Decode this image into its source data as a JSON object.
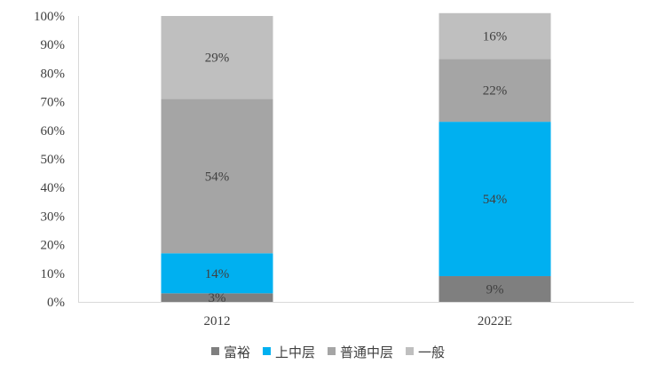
{
  "chart_data": {
    "type": "bar",
    "stacked": true,
    "categories": [
      "2012",
      "2022E"
    ],
    "series": [
      {
        "name": "富裕",
        "color": "#7f7f7f",
        "values": [
          3,
          9
        ],
        "labels": [
          "3%",
          "9%"
        ]
      },
      {
        "name": "上中层",
        "color": "#00b0f0",
        "values": [
          14,
          54
        ],
        "labels": [
          "14%",
          "54%"
        ]
      },
      {
        "name": "普通中层",
        "color": "#a5a5a5",
        "values": [
          54,
          22
        ],
        "labels": [
          "54%",
          "22%"
        ]
      },
      {
        "name": "一般",
        "color": "#bfbfbf",
        "values": [
          29,
          16
        ],
        "labels": [
          "29%",
          "16%"
        ]
      }
    ],
    "ylim": [
      0,
      100
    ],
    "y_ticks": [
      "0%",
      "10%",
      "20%",
      "30%",
      "40%",
      "50%",
      "60%",
      "70%",
      "80%",
      "90%",
      "100%"
    ],
    "legend_position": "bottom",
    "grid": false,
    "title": "",
    "xlabel": "",
    "ylabel": ""
  }
}
